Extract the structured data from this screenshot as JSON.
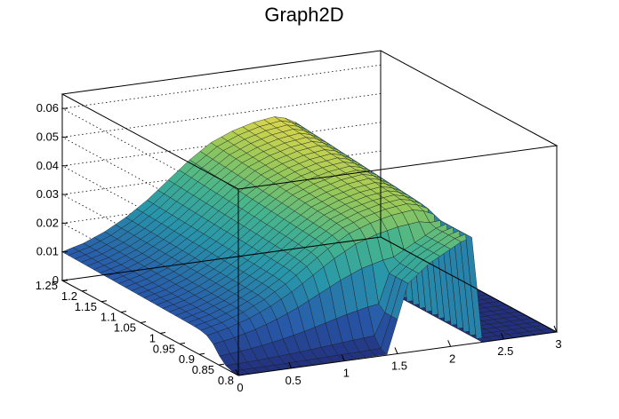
{
  "chart_data": {
    "type": "surface",
    "title": "Graph2D",
    "colormap": "viridis-like (dark blue -> teal -> green -> yellow)",
    "x_axis": {
      "range": [
        0,
        3
      ],
      "ticks": [
        "0",
        "0.5",
        "1",
        "1.5",
        "2",
        "2.5",
        "3"
      ]
    },
    "y_axis": {
      "range": [
        0.8,
        1.25
      ],
      "ticks": [
        "0.8",
        "0.85",
        "0.9",
        "0.95",
        "1",
        "1.05",
        "1.1",
        "1.15",
        "1.2",
        "1.25"
      ]
    },
    "z_axis": {
      "range": [
        0,
        0.065
      ],
      "ticks": [
        "0",
        "0.01",
        "0.02",
        "0.03",
        "0.04",
        "0.05",
        "0.06"
      ]
    },
    "grid": true,
    "surface_profile": {
      "x": [
        0.0,
        0.2,
        0.4,
        0.6,
        0.8,
        1.0,
        1.2,
        1.4,
        1.6,
        1.8,
        2.0,
        2.1,
        2.2,
        2.25,
        2.3
      ],
      "z_top_edge_y_max": [
        0.01,
        0.012,
        0.015,
        0.019,
        0.024,
        0.03,
        0.036,
        0.041,
        0.044,
        0.046,
        0.047,
        0.046,
        0.044,
        0.043,
        0.0
      ],
      "z_front_edge_y_min": [
        0.0,
        0.0,
        0.0,
        0.0,
        0.0,
        0.0,
        0.0,
        0.0,
        0.024,
        0.03,
        0.034,
        0.036,
        0.037,
        0.038,
        0.0
      ]
    }
  }
}
